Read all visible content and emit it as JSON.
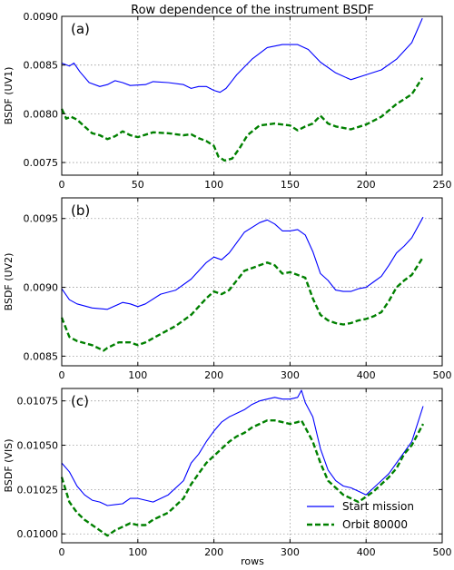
{
  "title": "Row dependence of the instrument BSDF",
  "xlabel": "rows",
  "colors": {
    "start_mission": "#0000ff",
    "orbit": "#008000"
  },
  "legend": [
    {
      "label": "Start mission",
      "color": "#0000ff",
      "style": "solid"
    },
    {
      "label": "Orbit 80000",
      "color": "#008000",
      "style": "dashed"
    }
  ],
  "chart_data": [
    {
      "type": "line",
      "panel_label": "(a)",
      "ylabel": "BSDF (UV1)",
      "xlim": [
        0,
        250
      ],
      "ylim": [
        0.00737,
        0.009
      ],
      "xticks": [
        0,
        50,
        100,
        150,
        200,
        250
      ],
      "xtick_labels": [
        "0",
        "50",
        "100",
        "150",
        "200",
        "250"
      ],
      "yticks": [
        0.0075,
        0.008,
        0.0085,
        0.009
      ],
      "ytick_labels": [
        "0.0075",
        "0.0080",
        "0.0085",
        "0.0090"
      ],
      "grid": true,
      "series": [
        {
          "name": "Start mission",
          "style": "solid",
          "x": [
            0,
            5,
            8,
            12,
            18,
            25,
            30,
            35,
            40,
            45,
            55,
            60,
            70,
            80,
            85,
            90,
            95,
            100,
            104,
            108,
            115,
            125,
            135,
            145,
            155,
            162,
            170,
            180,
            190,
            200,
            210,
            220,
            230,
            237
          ],
          "y": [
            0.00852,
            0.00849,
            0.00852,
            0.00843,
            0.00832,
            0.00828,
            0.0083,
            0.00834,
            0.00832,
            0.00829,
            0.0083,
            0.00833,
            0.00832,
            0.0083,
            0.00826,
            0.00828,
            0.00828,
            0.00824,
            0.00822,
            0.00826,
            0.0084,
            0.00856,
            0.00868,
            0.00871,
            0.00871,
            0.00866,
            0.00853,
            0.00842,
            0.00835,
            0.0084,
            0.00845,
            0.00856,
            0.00873,
            0.00898
          ]
        },
        {
          "name": "Orbit 80000",
          "style": "dashed",
          "x": [
            0,
            3,
            6,
            10,
            15,
            20,
            25,
            30,
            35,
            40,
            45,
            50,
            60,
            70,
            80,
            85,
            90,
            95,
            100,
            103,
            107,
            112,
            117,
            122,
            130,
            140,
            150,
            155,
            160,
            165,
            170,
            175,
            180,
            190,
            200,
            210,
            220,
            230,
            237
          ],
          "y": [
            0.00805,
            0.00795,
            0.00797,
            0.00794,
            0.00787,
            0.0078,
            0.00778,
            0.00774,
            0.00777,
            0.00782,
            0.00778,
            0.00776,
            0.00781,
            0.0078,
            0.00778,
            0.00779,
            0.00775,
            0.00772,
            0.00767,
            0.00756,
            0.00752,
            0.00754,
            0.00765,
            0.00778,
            0.00788,
            0.0079,
            0.00788,
            0.00783,
            0.00787,
            0.0079,
            0.00798,
            0.0079,
            0.00787,
            0.00784,
            0.00789,
            0.00797,
            0.0081,
            0.0082,
            0.00837
          ]
        }
      ]
    },
    {
      "type": "line",
      "panel_label": "(b)",
      "ylabel": "BSDF (UV2)",
      "xlim": [
        0,
        500
      ],
      "ylim": [
        0.00843,
        0.00965
      ],
      "xticks": [
        0,
        100,
        200,
        300,
        400,
        500
      ],
      "xtick_labels": [
        "0",
        "100",
        "200",
        "300",
        "400",
        "500"
      ],
      "yticks": [
        0.0085,
        0.009,
        0.0095
      ],
      "ytick_labels": [
        "0.0085",
        "0.0090",
        "0.0095"
      ],
      "grid": true,
      "series": [
        {
          "name": "Start mission",
          "style": "solid",
          "x": [
            0,
            10,
            20,
            40,
            60,
            80,
            90,
            100,
            110,
            130,
            150,
            170,
            190,
            200,
            210,
            220,
            240,
            260,
            270,
            280,
            290,
            300,
            310,
            320,
            330,
            340,
            350,
            360,
            370,
            380,
            390,
            400,
            410,
            420,
            430,
            440,
            450,
            460,
            475
          ],
          "y": [
            0.00899,
            0.00891,
            0.00888,
            0.00885,
            0.00884,
            0.00889,
            0.00888,
            0.00886,
            0.00888,
            0.00895,
            0.00898,
            0.00906,
            0.00918,
            0.00922,
            0.0092,
            0.00925,
            0.0094,
            0.00947,
            0.00949,
            0.00946,
            0.00941,
            0.00941,
            0.00942,
            0.00938,
            0.00926,
            0.0091,
            0.00905,
            0.00898,
            0.00897,
            0.00897,
            0.00899,
            0.009,
            0.00904,
            0.00908,
            0.00916,
            0.00925,
            0.0093,
            0.00936,
            0.00951
          ]
        },
        {
          "name": "Orbit 80000",
          "style": "dashed",
          "x": [
            0,
            10,
            20,
            40,
            55,
            60,
            75,
            90,
            100,
            110,
            130,
            150,
            170,
            190,
            200,
            210,
            220,
            240,
            260,
            270,
            280,
            290,
            300,
            310,
            320,
            330,
            340,
            350,
            360,
            370,
            380,
            390,
            400,
            410,
            420,
            430,
            440,
            450,
            460,
            475
          ],
          "y": [
            0.00878,
            0.00864,
            0.00861,
            0.00858,
            0.00854,
            0.00856,
            0.0086,
            0.0086,
            0.00858,
            0.0086,
            0.00866,
            0.00872,
            0.0088,
            0.00892,
            0.00897,
            0.00895,
            0.00898,
            0.00912,
            0.00916,
            0.00918,
            0.00916,
            0.0091,
            0.00911,
            0.00909,
            0.00907,
            0.00892,
            0.0088,
            0.00876,
            0.00874,
            0.00873,
            0.00874,
            0.00876,
            0.00877,
            0.00879,
            0.00882,
            0.0089,
            0.009,
            0.00905,
            0.00909,
            0.00922
          ]
        }
      ]
    },
    {
      "type": "line",
      "panel_label": "(c)",
      "ylabel": "BSDF (VIS)",
      "xlim": [
        0,
        500
      ],
      "ylim": [
        0.00995,
        0.01082
      ],
      "xticks": [
        0,
        100,
        200,
        300,
        400,
        500
      ],
      "xtick_labels": [
        "0",
        "100",
        "200",
        "300",
        "400",
        "500"
      ],
      "yticks": [
        0.01,
        0.01025,
        0.0105,
        0.01075
      ],
      "ytick_labels": [
        "0.01000",
        "0.01025",
        "0.01050",
        "0.01075"
      ],
      "grid": true,
      "series": [
        {
          "name": "Start mission",
          "style": "solid",
          "x": [
            0,
            10,
            20,
            30,
            40,
            50,
            60,
            80,
            90,
            100,
            110,
            120,
            140,
            160,
            170,
            180,
            190,
            200,
            210,
            220,
            230,
            240,
            250,
            260,
            270,
            280,
            290,
            300,
            310,
            315,
            320,
            330,
            340,
            350,
            360,
            370,
            380,
            390,
            400,
            410,
            420,
            430,
            440,
            450,
            460,
            475
          ],
          "y": [
            0.0104,
            0.01035,
            0.01027,
            0.01022,
            0.01019,
            0.01018,
            0.01016,
            0.01017,
            0.0102,
            0.0102,
            0.01019,
            0.01018,
            0.01022,
            0.0103,
            0.0104,
            0.01045,
            0.01052,
            0.01058,
            0.01063,
            0.01066,
            0.01068,
            0.0107,
            0.01073,
            0.01075,
            0.01076,
            0.01077,
            0.01076,
            0.01076,
            0.01077,
            0.01081,
            0.01074,
            0.01066,
            0.01048,
            0.01036,
            0.0103,
            0.01027,
            0.01026,
            0.01024,
            0.01022,
            0.01026,
            0.0103,
            0.01034,
            0.0104,
            0.01046,
            0.01052,
            0.01072
          ]
        },
        {
          "name": "Orbit 80000",
          "style": "dashed",
          "x": [
            0,
            10,
            20,
            30,
            40,
            50,
            60,
            70,
            80,
            90,
            100,
            110,
            120,
            140,
            160,
            170,
            180,
            190,
            200,
            210,
            220,
            230,
            240,
            250,
            260,
            270,
            280,
            290,
            300,
            310,
            315,
            320,
            330,
            340,
            350,
            360,
            370,
            380,
            390,
            400,
            410,
            420,
            430,
            440,
            450,
            460,
            475
          ],
          "y": [
            0.01032,
            0.01018,
            0.01012,
            0.01008,
            0.01005,
            0.01002,
            0.00999,
            0.01002,
            0.01004,
            0.01006,
            0.01005,
            0.01005,
            0.01008,
            0.01012,
            0.0102,
            0.01028,
            0.01034,
            0.0104,
            0.01044,
            0.01048,
            0.01052,
            0.01055,
            0.01057,
            0.0106,
            0.01062,
            0.01064,
            0.01064,
            0.01063,
            0.01062,
            0.01063,
            0.01064,
            0.0106,
            0.01052,
            0.0104,
            0.0103,
            0.01026,
            0.01022,
            0.0102,
            0.01018,
            0.01021,
            0.01024,
            0.01028,
            0.01032,
            0.01037,
            0.01045,
            0.0105,
            0.01062
          ]
        }
      ]
    }
  ]
}
